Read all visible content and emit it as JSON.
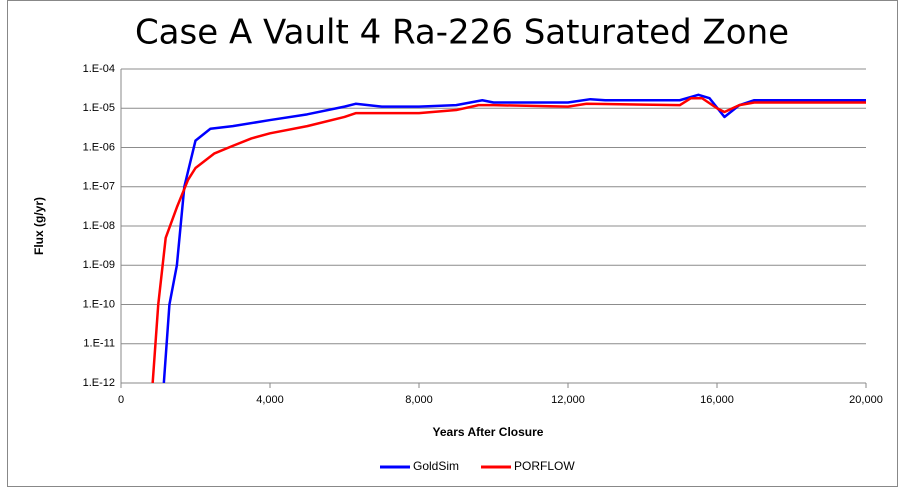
{
  "chart_data": {
    "type": "line",
    "title": "Case A Vault 4 Ra-226 Saturated Zone",
    "x_label": "Years After Closure",
    "y_label": "Flux (g/yr)",
    "log_y": true,
    "grid": true,
    "legend": "bottom",
    "xlim": [
      0,
      20000
    ],
    "xticks": [
      0,
      {
        "value": 4000,
        "label": "4,000"
      },
      {
        "value": 8000,
        "label": "8,000"
      },
      {
        "value": 12000,
        "label": "12,000"
      },
      {
        "value": 16000,
        "label": "16,000"
      },
      {
        "value": 20000,
        "label": "20,000"
      }
    ],
    "ylim": [
      1e-12,
      0.0001
    ],
    "yticks": [
      {
        "value": 1e-12,
        "label": "1.E-12"
      },
      {
        "value": 1e-11,
        "label": "1.E-11"
      },
      {
        "value": 1e-10,
        "label": "1.E-10"
      },
      {
        "value": 1e-09,
        "label": "1.E-09"
      },
      {
        "value": 1e-08,
        "label": "1.E-08"
      },
      {
        "value": 1e-07,
        "label": "1.E-07"
      },
      {
        "value": 1e-06,
        "label": "1.E-06"
      },
      {
        "value": 1e-05,
        "label": "1.E-05"
      },
      {
        "value": 0.0001,
        "label": "1.E-04"
      }
    ],
    "series": [
      {
        "name": "GoldSim",
        "color": "#0000ff",
        "x": [
          1150,
          1300,
          1500,
          1700,
          2000,
          2400,
          3000,
          4000,
          5000,
          6000,
          6300,
          7000,
          8000,
          9000,
          9700,
          10000,
          11000,
          12000,
          12600,
          13000,
          15000,
          15500,
          15800,
          16200,
          16600,
          17000,
          20000
        ],
        "values": [
          1e-12,
          1e-10,
          1e-09,
          1e-07,
          1.5e-06,
          3e-06,
          3.5e-06,
          5e-06,
          7e-06,
          1.1e-05,
          1.3e-05,
          1.1e-05,
          1.1e-05,
          1.2e-05,
          1.6e-05,
          1.4e-05,
          1.4e-05,
          1.4e-05,
          1.7e-05,
          1.6e-05,
          1.6e-05,
          2.2e-05,
          1.8e-05,
          6e-06,
          1.2e-05,
          1.6e-05,
          1.6e-05
        ]
      },
      {
        "name": "PORFLOW",
        "color": "#ff0000",
        "x": [
          850,
          1000,
          1200,
          1500,
          1800,
          2000,
          2500,
          3000,
          3500,
          4000,
          5000,
          6000,
          6300,
          8000,
          9000,
          9600,
          10000,
          12000,
          12500,
          15000,
          15300,
          15600,
          16000,
          16200,
          16600,
          17000,
          20000
        ],
        "values": [
          1e-12,
          1e-10,
          5e-09,
          3e-08,
          1.5e-07,
          3e-07,
          7e-07,
          1.1e-06,
          1.7e-06,
          2.3e-06,
          3.5e-06,
          6e-06,
          7.5e-06,
          7.5e-06,
          9e-06,
          1.2e-05,
          1.2e-05,
          1.1e-05,
          1.3e-05,
          1.2e-05,
          1.8e-05,
          1.8e-05,
          1e-05,
          8e-06,
          1.2e-05,
          1.4e-05,
          1.4e-05
        ]
      }
    ]
  }
}
